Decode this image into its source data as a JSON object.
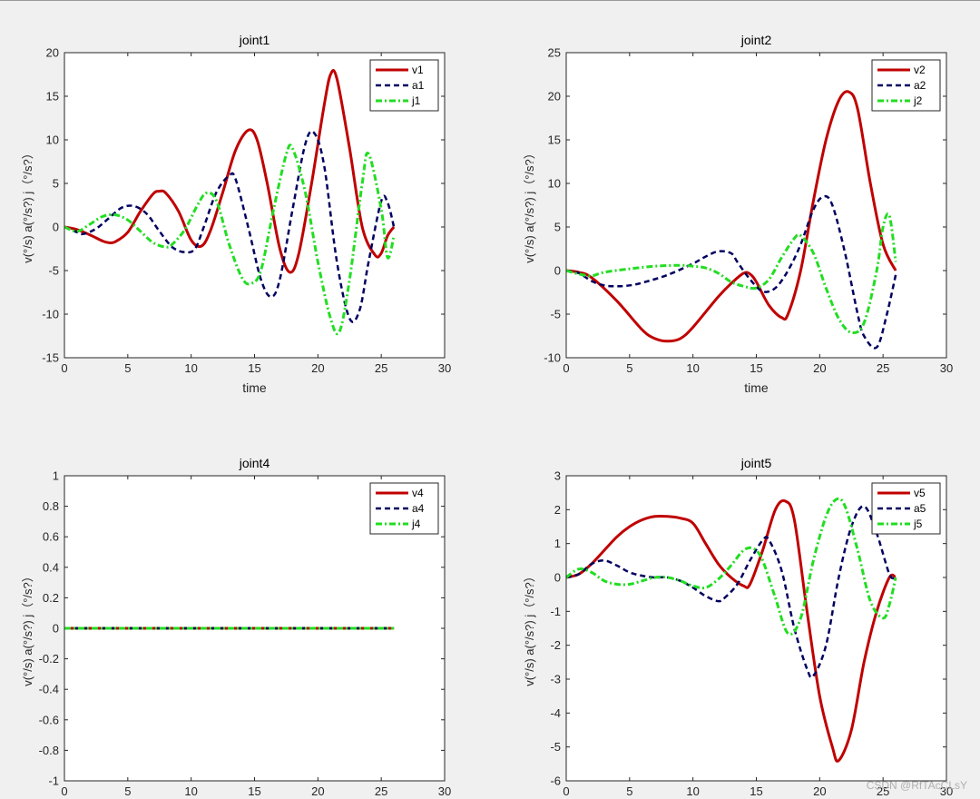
{
  "watermark": "CSDN @RfTAcCLsY",
  "chart_data": [
    {
      "type": "line",
      "title": "joint1",
      "xlabel": "time",
      "ylabel": "v(°/s)  a(°/s?)  j（°/s?）",
      "xlim": [
        0,
        30
      ],
      "ylim": [
        -15,
        20
      ],
      "xticks": [
        "0",
        "5",
        "10",
        "15",
        "20",
        "25",
        "30"
      ],
      "yticks": [
        "-15",
        "-10",
        "-5",
        "0",
        "5",
        "10",
        "15",
        "20"
      ],
      "legend_position": "top-right",
      "series": [
        {
          "name": "v1",
          "color": "#c00000",
          "style": "solid",
          "x": [
            0,
            1,
            2,
            3,
            3.5,
            4,
            5,
            6,
            7,
            7.5,
            8,
            9,
            10,
            10.8,
            11.5,
            12.5,
            13.5,
            14.5,
            15.2,
            16,
            17,
            17.8,
            18.5,
            19.5,
            20.5,
            21,
            21.5,
            22.5,
            23.5,
            24.5,
            25,
            25.5,
            26
          ],
          "y": [
            0,
            -0.3,
            -0.9,
            -1.6,
            -1.8,
            -1.7,
            -0.6,
            1.8,
            3.8,
            4.1,
            3.9,
            1.8,
            -1.5,
            -2.2,
            -0.5,
            4,
            8.8,
            11.1,
            10,
            5,
            -2.5,
            -5.2,
            -3,
            5,
            14,
            17.5,
            17,
            9,
            0,
            -3.2,
            -3,
            -1,
            0
          ]
        },
        {
          "name": "a1",
          "color": "#000060",
          "style": "dash",
          "x": [
            0,
            1,
            1.5,
            2.5,
            3.5,
            4.5,
            5.5,
            6.5,
            7.5,
            8.5,
            9.5,
            10.3,
            11,
            12,
            13,
            13.5,
            14.5,
            15.5,
            16.3,
            17,
            18,
            19,
            19.7,
            20.5,
            21.5,
            22.5,
            23.3,
            24,
            25,
            25.5,
            26
          ],
          "y": [
            0,
            -0.6,
            -0.8,
            -0.2,
            1,
            2.2,
            2.4,
            1.5,
            -0.5,
            -2.3,
            -2.9,
            -2.5,
            0,
            4,
            5.9,
            5.5,
            0,
            -6,
            -8,
            -6,
            2,
            9.5,
            10.8,
            7,
            -4,
            -10.5,
            -9.5,
            -4,
            3,
            2.8,
            0
          ]
        },
        {
          "name": "j1",
          "color": "#22dd22",
          "style": "dashdot",
          "x": [
            0,
            1,
            2,
            3,
            4,
            5,
            6,
            7,
            8,
            8.5,
            9.5,
            10.5,
            11.2,
            12,
            13,
            14,
            14.7,
            15.5,
            16.5,
            17.5,
            18,
            19,
            20,
            21,
            21.7,
            22.5,
            23.5,
            24,
            25,
            25.5,
            26
          ],
          "y": [
            0,
            -0.5,
            0.3,
            1.2,
            1.4,
            0.8,
            -0.5,
            -1.8,
            -2.3,
            -2,
            -0.3,
            2.5,
            3.9,
            3,
            -2,
            -5.8,
            -6.5,
            -5,
            2,
            8.3,
            9,
            4,
            -4,
            -10.5,
            -12,
            -6,
            5,
            8.4,
            2,
            -3.5,
            -1
          ]
        }
      ]
    },
    {
      "type": "line",
      "title": "joint2",
      "xlabel": "time",
      "ylabel": "v(°/s)  a(°/s?)  j（°/s?）",
      "xlim": [
        0,
        30
      ],
      "ylim": [
        -10,
        25
      ],
      "xticks": [
        "0",
        "5",
        "10",
        "15",
        "20",
        "25",
        "30"
      ],
      "yticks": [
        "-10",
        "-5",
        "0",
        "5",
        "10",
        "15",
        "20",
        "25"
      ],
      "legend_position": "top-right",
      "series": [
        {
          "name": "v2",
          "color": "#c00000",
          "style": "solid",
          "x": [
            0,
            1,
            2,
            4,
            6,
            7,
            8,
            9,
            10,
            12,
            13,
            14,
            14.5,
            15,
            16,
            17,
            17.5,
            18.5,
            19.5,
            20.5,
            21.5,
            22.3,
            23,
            24,
            25,
            26
          ],
          "y": [
            0,
            -0.2,
            -0.8,
            -3.5,
            -6.8,
            -7.8,
            -8.1,
            -7.8,
            -6.5,
            -3,
            -1.5,
            -0.3,
            -0.4,
            -1.3,
            -4,
            -5.4,
            -5,
            0,
            8,
            15,
            19.5,
            20.5,
            18.5,
            10,
            3,
            0
          ]
        },
        {
          "name": "a2",
          "color": "#000060",
          "style": "dash",
          "x": [
            0,
            1,
            2,
            3,
            4,
            5,
            6,
            8,
            10,
            11,
            12,
            13,
            13.5,
            14.5,
            15.5,
            16.5,
            17.5,
            18.5,
            19.5,
            20.3,
            21,
            22,
            23,
            23.5,
            24.5,
            25.3,
            26
          ],
          "y": [
            0,
            -0.3,
            -1.2,
            -1.7,
            -1.8,
            -1.7,
            -1.4,
            -0.5,
            0.8,
            1.6,
            2.2,
            2,
            1,
            -1,
            -2.4,
            -2,
            0,
            3,
            7,
            8.5,
            7.5,
            2,
            -5,
            -7.5,
            -8.8,
            -5,
            -0.5
          ]
        },
        {
          "name": "j2",
          "color": "#22dd22",
          "style": "dashdot",
          "x": [
            0,
            1,
            2,
            3,
            5,
            7,
            9,
            10,
            11,
            12,
            13,
            14,
            15,
            16,
            17,
            18,
            18.5,
            19.5,
            20.5,
            21.5,
            22.5,
            23.5,
            24.5,
            25,
            25.5,
            26
          ],
          "y": [
            0,
            -0.4,
            -0.6,
            -0.2,
            0.2,
            0.5,
            0.6,
            0.5,
            0.3,
            -0.3,
            -1.3,
            -1.8,
            -2,
            -1,
            1.5,
            3.7,
            4,
            2,
            -2,
            -5.5,
            -7.1,
            -6,
            0,
            5,
            6.3,
            1
          ]
        }
      ]
    },
    {
      "type": "line",
      "title": "joint4",
      "xlabel": "",
      "ylabel": "v(°/s)  a(°/s?)  j（°/s?）",
      "xlim": [
        0,
        30
      ],
      "ylim": [
        -1,
        1
      ],
      "xticks": [
        "0",
        "5",
        "10",
        "15",
        "20",
        "25",
        "30"
      ],
      "yticks": [
        "-1",
        "-0.8",
        "-0.6",
        "-0.4",
        "-0.2",
        "0",
        "0.2",
        "0.4",
        "0.6",
        "0.8",
        "1"
      ],
      "legend_position": "top-right",
      "series": [
        {
          "name": "v4",
          "color": "#c00000",
          "style": "solid",
          "x": [
            0,
            26
          ],
          "y": [
            0,
            0
          ]
        },
        {
          "name": "a4",
          "color": "#000060",
          "style": "dash",
          "x": [
            0,
            26
          ],
          "y": [
            0,
            0
          ]
        },
        {
          "name": "j4",
          "color": "#22dd22",
          "style": "dashdot",
          "x": [
            0,
            26
          ],
          "y": [
            0,
            0
          ]
        }
      ]
    },
    {
      "type": "line",
      "title": "joint5",
      "xlabel": "",
      "ylabel": "v(°/s)  a(°/s?)  j（°/s?）",
      "xlim": [
        0,
        30
      ],
      "ylim": [
        -6,
        3
      ],
      "xticks": [
        "0",
        "5",
        "10",
        "15",
        "20",
        "25",
        "30"
      ],
      "yticks": [
        "-6",
        "-5",
        "-4",
        "-3",
        "-2",
        "-1",
        "0",
        "1",
        "2",
        "3"
      ],
      "legend_position": "top-right",
      "series": [
        {
          "name": "v5",
          "color": "#c00000",
          "style": "solid",
          "x": [
            0,
            1,
            2,
            3,
            4,
            5,
            6,
            7,
            8,
            9,
            10,
            11,
            12,
            13,
            14,
            14.5,
            15.5,
            16.5,
            17.3,
            18,
            19,
            20,
            21,
            21.5,
            22.5,
            23.5,
            24.5,
            25.5,
            26
          ],
          "y": [
            0,
            0.1,
            0.4,
            0.8,
            1.2,
            1.5,
            1.7,
            1.8,
            1.8,
            1.75,
            1.6,
            1,
            0.4,
            0,
            -0.25,
            -0.2,
            0.8,
            2,
            2.25,
            1.7,
            -1,
            -3.5,
            -5,
            -5.4,
            -4.5,
            -2.5,
            -1,
            0,
            0
          ]
        },
        {
          "name": "a5",
          "color": "#000060",
          "style": "dash",
          "x": [
            0,
            1,
            2,
            3,
            4,
            5,
            6,
            7,
            8,
            9,
            10,
            11,
            12,
            12.5,
            13.5,
            14.5,
            15.5,
            16,
            17,
            18,
            19,
            19.5,
            20.5,
            21.5,
            22.5,
            23.5,
            24.5,
            25.5,
            26
          ],
          "y": [
            0,
            0.1,
            0.4,
            0.5,
            0.35,
            0.15,
            0.05,
            0,
            0,
            -0.1,
            -0.3,
            -0.55,
            -0.7,
            -0.6,
            -0.2,
            0.5,
            1.1,
            1.1,
            0.2,
            -1.5,
            -2.7,
            -2.9,
            -2,
            0,
            1.5,
            2.1,
            1.3,
            0.1,
            0
          ]
        },
        {
          "name": "j5",
          "color": "#22dd22",
          "style": "dashdot",
          "x": [
            0,
            1,
            2,
            3,
            4,
            5,
            6,
            7,
            8,
            9,
            10,
            11,
            12,
            13,
            14,
            14.8,
            15.5,
            16.5,
            17.5,
            18.5,
            19.5,
            20.5,
            21.3,
            22,
            23,
            24,
            25,
            25.5,
            26
          ],
          "y": [
            0,
            0.25,
            0.15,
            -0.1,
            -0.2,
            -0.2,
            -0.1,
            0,
            0,
            -0.1,
            -0.25,
            -0.3,
            -0.05,
            0.35,
            0.8,
            0.85,
            0.5,
            -0.6,
            -1.65,
            -1.2,
            0.5,
            1.8,
            2.3,
            2.1,
            0.8,
            -0.7,
            -1.2,
            -0.8,
            0
          ]
        }
      ]
    }
  ]
}
